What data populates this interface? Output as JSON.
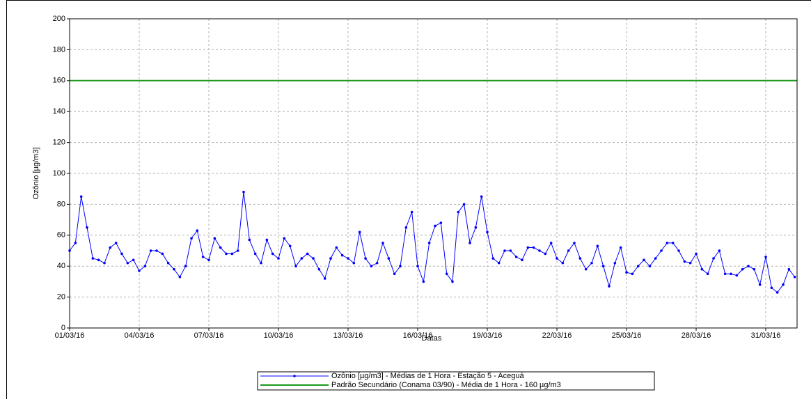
{
  "chart_data": {
    "type": "line",
    "xlabel": "Datas",
    "ylabel": "Ozônio [µg/m3]",
    "xlim": [
      0,
      31.35
    ],
    "ylim": [
      0,
      200
    ],
    "xticks": [
      {
        "value": 0,
        "label": "01/03/16"
      },
      {
        "value": 3,
        "label": "04/03/16"
      },
      {
        "value": 6,
        "label": "07/03/16"
      },
      {
        "value": 9,
        "label": "10/03/16"
      },
      {
        "value": 12,
        "label": "13/03/16"
      },
      {
        "value": 15,
        "label": "16/03/16"
      },
      {
        "value": 18,
        "label": "19/03/16"
      },
      {
        "value": 21,
        "label": "22/03/16"
      },
      {
        "value": 24,
        "label": "25/03/16"
      },
      {
        "value": 27,
        "label": "28/03/16"
      },
      {
        "value": 30,
        "label": "31/03/16"
      }
    ],
    "yticks": [
      0,
      20,
      40,
      60,
      80,
      100,
      120,
      140,
      160,
      180,
      200
    ],
    "grid": true,
    "series": [
      {
        "name": "Ozônio [µg/m3] - Médias de 1 Hora - Estação 5 - Aceguá",
        "color": "#0000ff",
        "markers": true,
        "x": [
          0,
          0.25,
          0.5,
          0.75,
          1,
          1.25,
          1.5,
          1.75,
          2,
          2.25,
          2.5,
          2.75,
          3,
          3.25,
          3.5,
          3.75,
          4,
          4.25,
          4.5,
          4.75,
          5,
          5.25,
          5.5,
          5.75,
          6,
          6.25,
          6.5,
          6.75,
          7,
          7.25,
          7.5,
          7.75,
          8,
          8.25,
          8.5,
          8.75,
          9,
          9.25,
          9.5,
          9.75,
          10,
          10.25,
          10.5,
          10.75,
          11,
          11.25,
          11.5,
          11.75,
          12,
          12.25,
          12.5,
          12.75,
          13,
          13.25,
          13.5,
          13.75,
          14,
          14.25,
          14.5,
          14.75,
          15,
          15.25,
          15.5,
          15.75,
          16,
          16.25,
          16.5,
          16.75,
          17,
          17.25,
          17.5,
          17.75,
          18,
          18.25,
          18.5,
          18.75,
          19,
          19.25,
          19.5,
          19.75,
          20,
          20.25,
          20.5,
          20.75,
          21,
          21.25,
          21.5,
          21.75,
          22,
          22.25,
          22.5,
          22.75,
          23,
          23.25,
          23.5,
          23.75,
          24,
          24.25,
          24.5,
          24.75,
          25,
          25.25,
          25.5,
          25.75,
          26,
          26.25,
          26.5,
          26.75,
          27,
          27.25,
          27.5,
          27.75,
          28,
          28.25,
          28.5,
          28.75,
          29,
          29.25,
          29.5,
          29.75,
          30,
          30.25,
          30.5,
          30.75,
          31,
          31.25
        ],
        "values": [
          50,
          55,
          85,
          65,
          45,
          44,
          42,
          52,
          55,
          48,
          42,
          44,
          37,
          40,
          50,
          50,
          48,
          42,
          38,
          33,
          40,
          58,
          63,
          46,
          44,
          58,
          52,
          48,
          48,
          50,
          88,
          57,
          48,
          42,
          57,
          48,
          45,
          58,
          53,
          40,
          45,
          48,
          45,
          38,
          32,
          45,
          52,
          47,
          45,
          42,
          62,
          45,
          40,
          42,
          55,
          45,
          35,
          40,
          65,
          75,
          40,
          30,
          55,
          66,
          68,
          35,
          30,
          75,
          80,
          55,
          65,
          85,
          62,
          45,
          42,
          50,
          50,
          46,
          44,
          52,
          52,
          50,
          48,
          55,
          45,
          42,
          50,
          55,
          45,
          38,
          42,
          53,
          40,
          27,
          42,
          52,
          36,
          35,
          40,
          44,
          40,
          45,
          50,
          55,
          55,
          50,
          43,
          42,
          48,
          38,
          35,
          45,
          50,
          35,
          35,
          34,
          38,
          40,
          38,
          28,
          46,
          26,
          23,
          28,
          38,
          33
        ]
      },
      {
        "name": "Padrão Secundário (Conama 03/90) - Média de 1 Hora - 160 µg/m3",
        "color": "#1a9a1a",
        "markers": false,
        "x": [
          0,
          31.35
        ],
        "values": [
          160,
          160
        ]
      }
    ]
  }
}
